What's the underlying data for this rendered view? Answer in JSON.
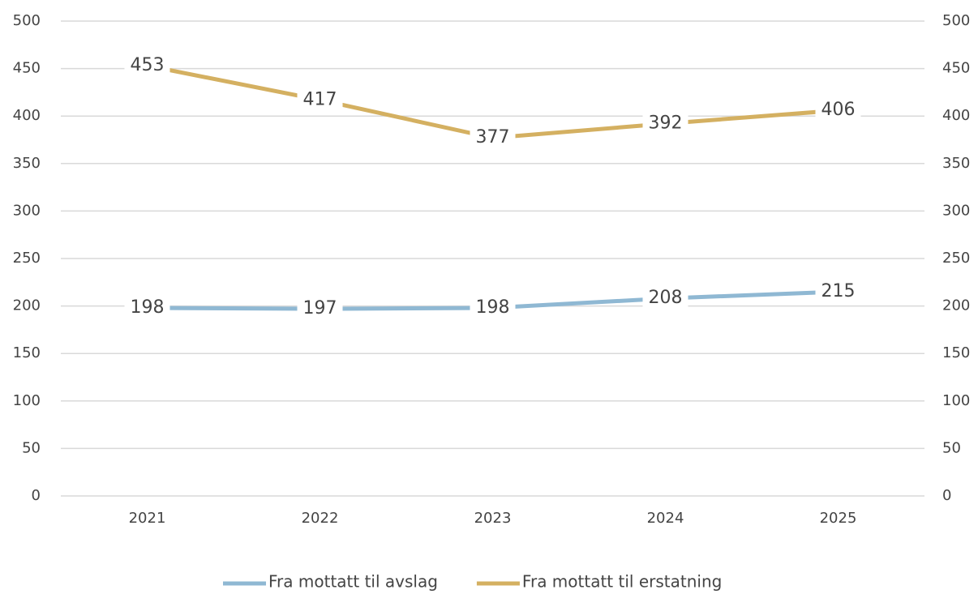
{
  "chart_data": {
    "type": "line",
    "categories": [
      "2021",
      "2022",
      "2023",
      "2024",
      "2025"
    ],
    "series": [
      {
        "name": "Fra mottatt til avslag",
        "color": "#8fb8d3",
        "values": [
          198,
          197,
          198,
          208,
          215
        ]
      },
      {
        "name": "Fra mottatt til erstatning",
        "color": "#d4b061",
        "values": [
          453,
          417,
          377,
          392,
          406
        ]
      }
    ],
    "ylim": [
      0,
      500
    ],
    "yticks": [
      0,
      50,
      100,
      150,
      200,
      250,
      300,
      350,
      400,
      450,
      500
    ],
    "y2lim": [
      0,
      500
    ],
    "y2ticks": [
      0,
      50,
      100,
      150,
      200,
      250,
      300,
      350,
      400,
      450,
      500
    ],
    "grid": true,
    "legend": "bottom"
  }
}
